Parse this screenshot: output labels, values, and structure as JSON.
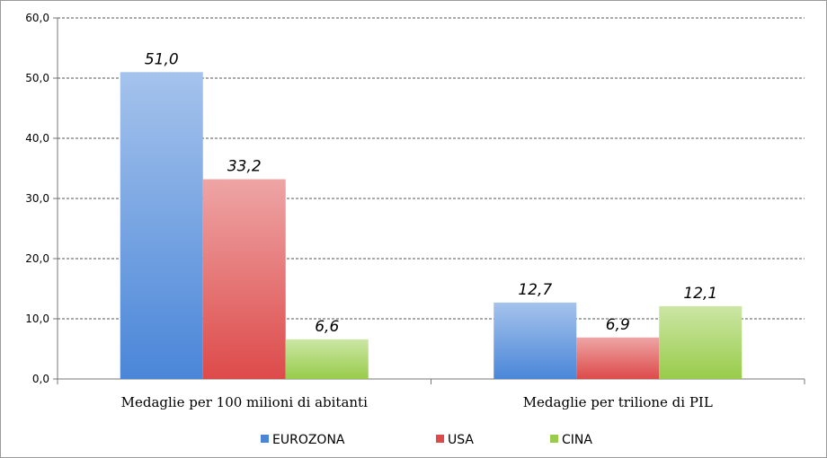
{
  "chart_data": {
    "type": "bar",
    "categories": [
      "Medaglie per 100 milioni di abitanti",
      "Medaglie per trilione di PIL"
    ],
    "series": [
      {
        "name": "EUROZONA",
        "values": [
          51.0,
          12.7
        ],
        "labels": [
          "51,0",
          "12,7"
        ],
        "color": "#4a86d8"
      },
      {
        "name": "USA",
        "values": [
          33.2,
          6.9
        ],
        "labels": [
          "33,2",
          "6,9"
        ],
        "color": "#dd4a4a"
      },
      {
        "name": "CINA",
        "values": [
          6.6,
          12.1
        ],
        "labels": [
          "6,6",
          "12,1"
        ],
        "color": "#98cc4a"
      }
    ],
    "yticks": [
      "0,0",
      "10,0",
      "20,0",
      "30,0",
      "40,0",
      "50,0",
      "60,0"
    ],
    "ylim": [
      0,
      60
    ],
    "grid": true,
    "legend_position": "bottom"
  }
}
